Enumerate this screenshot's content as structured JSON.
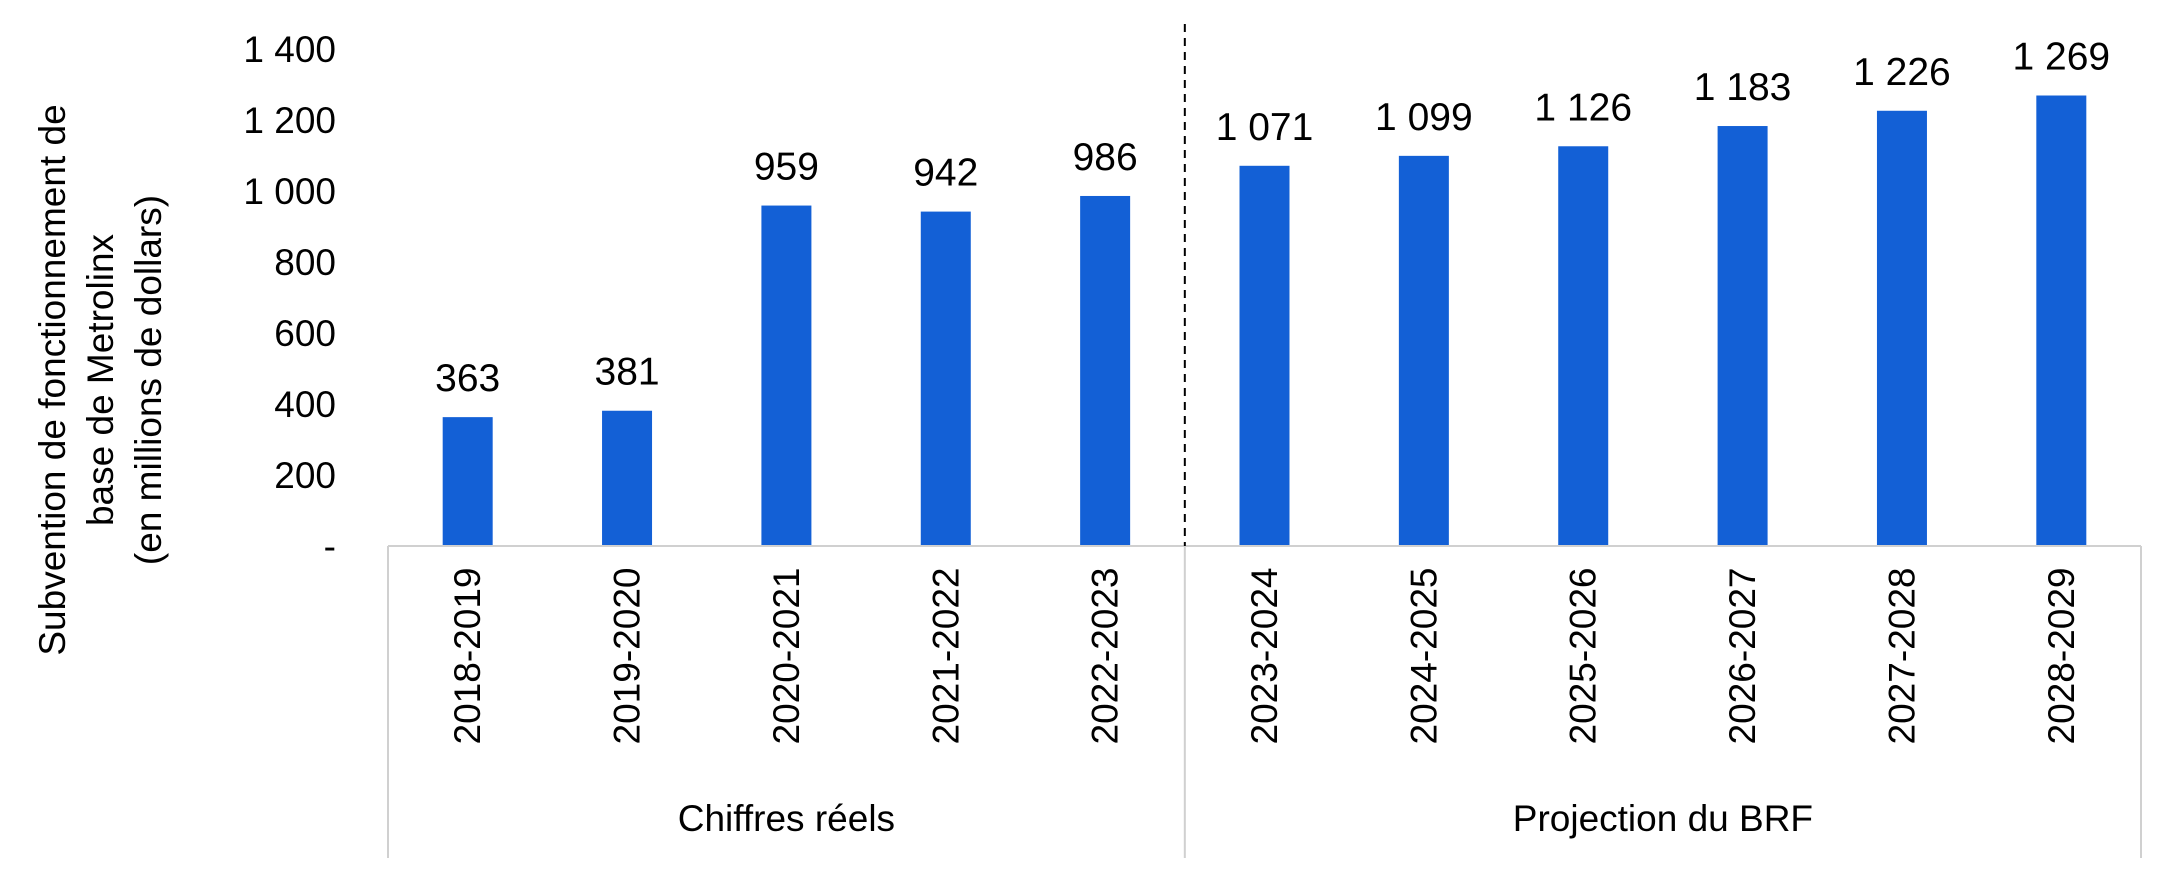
{
  "chart_data": {
    "type": "bar",
    "title": "",
    "ylabel_lines": [
      "Subvention de fonctionnement de",
      "base de Metrolinx",
      "(en millions de dollars)"
    ],
    "xlabel": "",
    "categories": [
      "2018-2019",
      "2019-2020",
      "2020-2021",
      "2021-2022",
      "2022-2023",
      "2023-2024",
      "2024-2025",
      "2025-2026",
      "2026-2027",
      "2027-2028",
      "2028-2029"
    ],
    "values": [
      363,
      381,
      959,
      942,
      986,
      1071,
      1099,
      1126,
      1183,
      1226,
      1269
    ],
    "value_labels": [
      "363",
      "381",
      "959",
      "942",
      "986",
      "1 071",
      "1 099",
      "1 126",
      "1 183",
      "1 226",
      "1 269"
    ],
    "groups": [
      {
        "label": "Chiffres réels",
        "count": 5
      },
      {
        "label": "Projection du BRF",
        "count": 6
      }
    ],
    "ylim": [
      0,
      1400
    ],
    "yticks": [
      0,
      200,
      400,
      600,
      800,
      1000,
      1200,
      1400
    ],
    "ytick_labels": [
      "-",
      "200",
      "400",
      "600",
      "800",
      "1 000",
      "1 200",
      "1 400"
    ],
    "grid": false,
    "bar_color": "#1360D6",
    "divider_style": "dashed"
  }
}
